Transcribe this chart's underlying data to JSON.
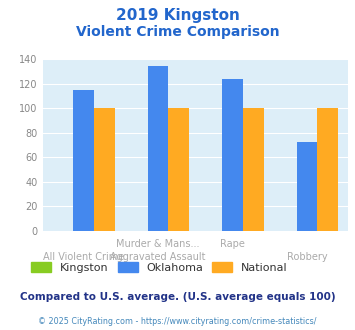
{
  "title_line1": "2019 Kingston",
  "title_line2": "Violent Crime Comparison",
  "categories_display": [
    "All Violent Crime",
    "Murder & Mans...",
    "Rape",
    "Robbery"
  ],
  "categories_sub": [
    "",
    "Aggravated Assault",
    "",
    ""
  ],
  "series": {
    "Kingston": [
      0,
      0,
      0,
      0
    ],
    "Oklahoma": [
      115,
      135,
      124,
      73
    ],
    "National": [
      100,
      100,
      100,
      100
    ]
  },
  "colors": {
    "Kingston": "#88cc22",
    "Oklahoma": "#4488ee",
    "National": "#ffaa22"
  },
  "ylim": [
    0,
    140
  ],
  "yticks": [
    0,
    20,
    40,
    60,
    80,
    100,
    120,
    140
  ],
  "bg_color": "#ddeef8",
  "title_color": "#2266cc",
  "xtick_color": "#aaaaaa",
  "ytick_color": "#888888",
  "footer_text": "Compared to U.S. average. (U.S. average equals 100)",
  "footer_color": "#223388",
  "credit_text": "© 2025 CityRating.com - https://www.cityrating.com/crime-statistics/",
  "credit_color": "#4488bb",
  "bar_width": 0.28
}
